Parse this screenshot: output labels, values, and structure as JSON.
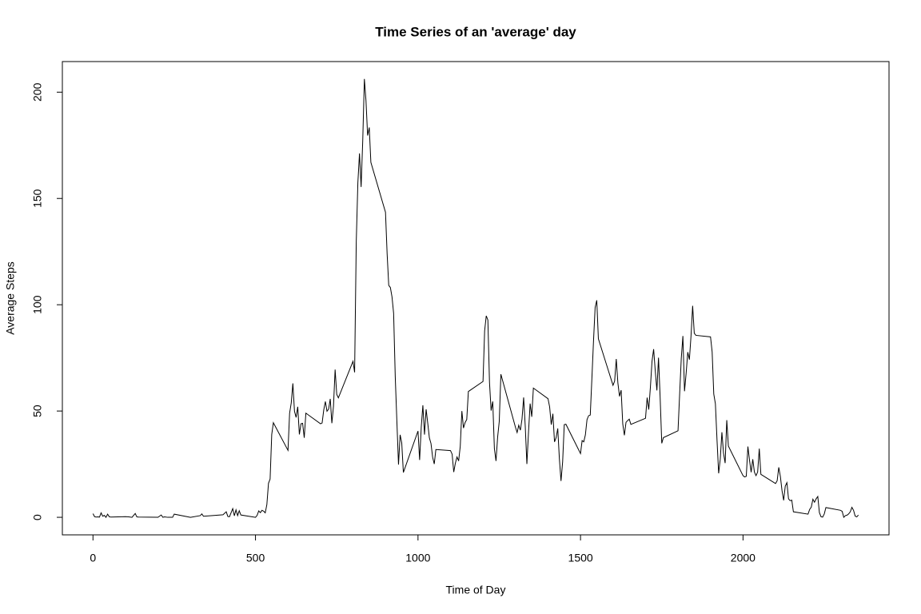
{
  "chart_data": {
    "type": "line",
    "title": "Time Series of an 'average' day",
    "x_label": "Time of Day",
    "y_label": "Average Steps",
    "xlim": [
      -94.2,
      2449.2
    ],
    "ylim": [
      -8.25,
      214.4
    ],
    "xticks": [
      0,
      500,
      1000,
      1500,
      2000
    ],
    "yticks": [
      0,
      50,
      100,
      150,
      200
    ],
    "grid": false,
    "x": [
      0,
      5,
      10,
      15,
      20,
      25,
      30,
      35,
      40,
      45,
      50,
      55,
      100,
      110,
      120,
      130,
      135,
      140,
      200,
      210,
      215,
      220,
      230,
      245,
      250,
      300,
      330,
      335,
      340,
      400,
      410,
      415,
      420,
      430,
      435,
      440,
      445,
      450,
      455,
      500,
      505,
      510,
      515,
      520,
      525,
      530,
      535,
      540,
      545,
      550,
      555,
      600,
      605,
      610,
      615,
      620,
      625,
      630,
      635,
      640,
      645,
      650,
      655,
      700,
      705,
      710,
      715,
      720,
      725,
      730,
      735,
      740,
      745,
      750,
      755,
      800,
      805,
      810,
      815,
      820,
      825,
      830,
      835,
      840,
      845,
      850,
      855,
      900,
      905,
      910,
      915,
      920,
      925,
      930,
      935,
      940,
      945,
      950,
      955,
      1000,
      1005,
      1010,
      1015,
      1020,
      1025,
      1030,
      1035,
      1040,
      1045,
      1050,
      1055,
      1100,
      1105,
      1110,
      1115,
      1120,
      1125,
      1130,
      1135,
      1140,
      1145,
      1150,
      1155,
      1200,
      1205,
      1210,
      1215,
      1220,
      1225,
      1230,
      1235,
      1240,
      1245,
      1250,
      1255,
      1300,
      1305,
      1310,
      1315,
      1320,
      1325,
      1330,
      1335,
      1340,
      1345,
      1350,
      1355,
      1400,
      1405,
      1410,
      1415,
      1420,
      1425,
      1430,
      1435,
      1440,
      1445,
      1450,
      1455,
      1500,
      1505,
      1510,
      1515,
      1520,
      1525,
      1530,
      1535,
      1540,
      1545,
      1550,
      1555,
      1600,
      1605,
      1610,
      1615,
      1620,
      1625,
      1630,
      1635,
      1640,
      1645,
      1650,
      1655,
      1700,
      1705,
      1710,
      1715,
      1720,
      1725,
      1730,
      1735,
      1740,
      1745,
      1750,
      1755,
      1800,
      1805,
      1810,
      1815,
      1820,
      1825,
      1830,
      1835,
      1840,
      1845,
      1850,
      1855,
      1900,
      1905,
      1910,
      1915,
      1920,
      1925,
      1930,
      1935,
      1940,
      1945,
      1950,
      1955,
      2000,
      2005,
      2010,
      2015,
      2020,
      2025,
      2030,
      2035,
      2040,
      2045,
      2050,
      2055,
      2100,
      2105,
      2110,
      2115,
      2120,
      2125,
      2130,
      2135,
      2140,
      2145,
      2150,
      2155,
      2200,
      2205,
      2210,
      2215,
      2220,
      2225,
      2230,
      2235,
      2240,
      2245,
      2250,
      2255,
      2300,
      2305,
      2310,
      2315,
      2320,
      2325,
      2330,
      2335,
      2340,
      2345,
      2350,
      2355
    ],
    "series": [
      {
        "name": "Average Steps",
        "color": "#000000",
        "values": [
          1.7,
          0.3,
          0.1,
          0.2,
          0.1,
          2.1,
          0.5,
          0.9,
          0,
          1.5,
          0.3,
          0.1,
          0.3,
          0.2,
          0,
          1.8,
          0.2,
          0.1,
          0,
          1.1,
          0,
          0.2,
          0,
          0,
          1.5,
          0,
          0.8,
          1.6,
          0.5,
          1.2,
          2.6,
          0.4,
          0.3,
          4.1,
          0.7,
          3.5,
          0.8,
          3.1,
          1.1,
          0,
          0.9,
          3,
          2.2,
          3.3,
          2.9,
          2.1,
          6,
          16,
          18,
          39,
          44.5,
          31.5,
          49,
          53.8,
          63,
          49.9,
          47,
          52,
          39,
          44,
          44.2,
          37.4,
          49,
          44,
          44.4,
          50.5,
          54.5,
          49.9,
          50.9,
          55.7,
          44.3,
          52.3,
          69.5,
          57.8,
          56.2,
          73.4,
          68.2,
          129.4,
          157.5,
          171.2,
          155.4,
          177.3,
          206.2,
          195.9,
          179.6,
          183.4,
          167,
          143.5,
          124,
          109.1,
          108.1,
          103.7,
          95.97,
          66.2,
          45.2,
          24.8,
          38.8,
          34.98,
          21.1,
          40.6,
          26.98,
          42.4,
          52.7,
          38.9,
          50.8,
          44.3,
          37.4,
          34.7,
          28.3,
          25.1,
          31.9,
          31.4,
          29.7,
          21.3,
          25.5,
          28.4,
          26.5,
          33.4,
          50,
          42,
          44.6,
          46,
          59.2,
          63.9,
          87.7,
          94.8,
          92.8,
          63.4,
          50.2,
          54.5,
          32.4,
          26.5,
          37.7,
          45.1,
          67.3,
          42.3,
          39.9,
          43.3,
          40.98,
          46.2,
          56.4,
          42.8,
          25.1,
          39.97,
          53.5,
          47.3,
          60.8,
          55.8,
          51.96,
          43.6,
          48.7,
          35.5,
          37.5,
          41.8,
          27.5,
          17.1,
          26.1,
          43.6,
          43.8,
          30,
          36.1,
          35.5,
          38.8,
          45.96,
          47.8,
          48.1,
          65.3,
          82.9,
          98.7,
          102.1,
          83.96,
          62.1,
          64.1,
          74.5,
          63.2,
          56.9,
          59.8,
          43.9,
          38.6,
          44.7,
          45.5,
          46.2,
          43.7,
          46.6,
          56.3,
          50.7,
          61.2,
          73.4,
          79.1,
          68.9,
          59.7,
          75.1,
          56.5,
          34.8,
          37.5,
          40.7,
          58,
          74.7,
          85.3,
          59.3,
          67.8,
          77.7,
          74.2,
          85.3,
          99.5,
          86.6,
          85.6,
          84.9,
          77.8,
          58,
          53.4,
          36.3,
          20.7,
          27.4,
          40,
          30.2,
          25.5,
          45.7,
          33.5,
          19.6,
          19,
          19.3,
          33.3,
          26.8,
          21.2,
          27.3,
          21.3,
          19.6,
          21.3,
          32.3,
          20.2,
          15.9,
          17.2,
          23.5,
          19.2,
          12.5,
          8,
          14.7,
          16.3,
          8.7,
          7.8,
          8.1,
          2.6,
          1.5,
          3.7,
          4.8,
          8.5,
          7.1,
          8.7,
          9.8,
          2.2,
          0.3,
          0.1,
          1.6,
          4.6,
          3.3,
          2.8,
          0,
          0.8,
          1,
          1.6,
          2.6,
          4.7,
          3.3,
          0.6,
          0.2,
          1.1
        ]
      }
    ]
  }
}
